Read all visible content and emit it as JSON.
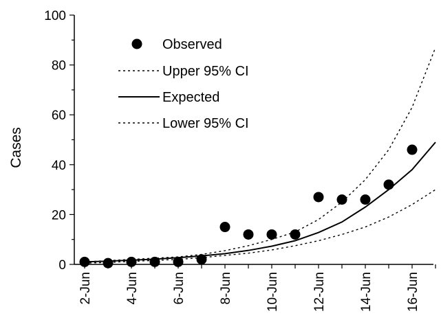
{
  "chart_data": {
    "type": "line",
    "title": "",
    "xlabel": "",
    "ylabel": "Cases",
    "ylim": [
      0,
      100
    ],
    "yticks": [
      0,
      20,
      40,
      60,
      80,
      100
    ],
    "x": [
      "2-Jun",
      "3-Jun",
      "4-Jun",
      "5-Jun",
      "6-Jun",
      "7-Jun",
      "8-Jun",
      "9-Jun",
      "10-Jun",
      "11-Jun",
      "12-Jun",
      "13-Jun",
      "14-Jun",
      "15-Jun",
      "16-Jun",
      "17-Jun"
    ],
    "xtick_labels": [
      "2-Jun",
      "4-Jun",
      "6-Jun",
      "8-Jun",
      "10-Jun",
      "12-Jun",
      "14-Jun",
      "16-Jun"
    ],
    "grid": false,
    "legend_position": "top-left",
    "series": [
      {
        "name": "Observed",
        "style": "markers",
        "color": "#000000",
        "values": [
          1,
          0.5,
          1,
          1,
          1,
          2,
          15,
          12,
          12,
          12,
          27,
          26,
          26,
          32,
          46,
          null
        ]
      },
      {
        "name": "Upper 95% CI",
        "style": "dotted",
        "color": "#000000",
        "values": [
          1,
          1.5,
          2,
          2.5,
          3,
          4,
          5.5,
          7.5,
          10,
          13,
          18,
          25,
          34,
          46,
          63,
          87
        ]
      },
      {
        "name": "Expected",
        "style": "solid",
        "color": "#000000",
        "values": [
          1,
          1.3,
          1.7,
          2.1,
          2.7,
          3.4,
          4.3,
          5.6,
          7.3,
          9.5,
          12.8,
          17,
          23,
          30,
          38,
          49
        ]
      },
      {
        "name": "Lower 95% CI",
        "style": "dotted",
        "color": "#000000",
        "values": [
          0.5,
          0.8,
          1.2,
          1.6,
          2,
          2.7,
          3.6,
          4.5,
          5.8,
          7.5,
          9.5,
          12,
          15,
          19,
          24,
          30
        ]
      }
    ]
  }
}
